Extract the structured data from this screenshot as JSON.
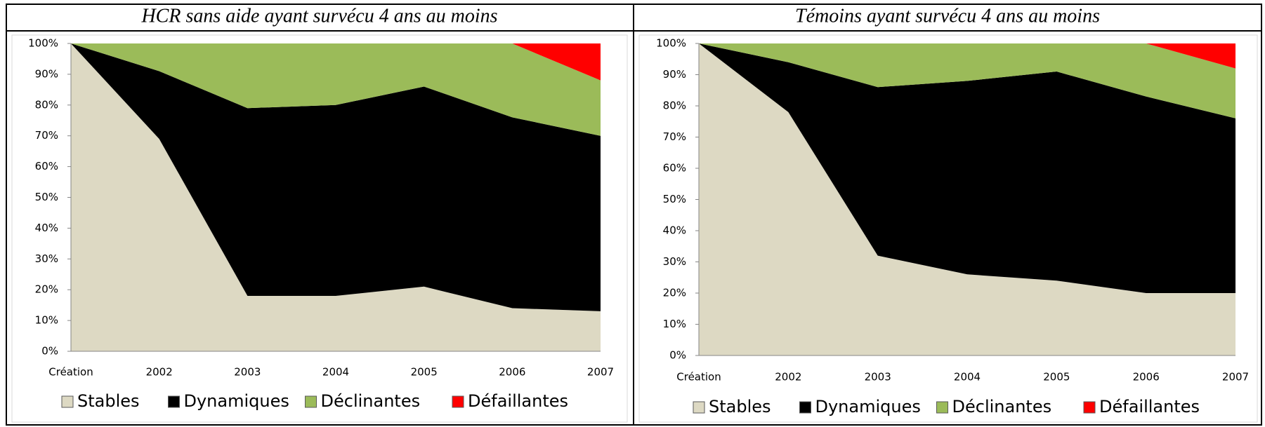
{
  "chart_data": [
    {
      "type": "area",
      "stacked": true,
      "title": "HCR sans aide ayant survécu 4 ans au moins",
      "categories": [
        "Création",
        "2002",
        "2003",
        "2004",
        "2005",
        "2006",
        "2007"
      ],
      "series": [
        {
          "name": "Stables",
          "color": "#ddd9c3",
          "values": [
            100,
            69,
            18,
            18,
            21,
            14,
            13
          ]
        },
        {
          "name": "Dynamiques",
          "color": "#000000",
          "values": [
            0,
            22,
            61,
            62,
            65,
            62,
            57
          ]
        },
        {
          "name": "Déclinantes",
          "color": "#9bbb59",
          "values": [
            0,
            9,
            21,
            20,
            14,
            24,
            18
          ]
        },
        {
          "name": "Défaillantes",
          "color": "#ff0000",
          "values": [
            0,
            0,
            0,
            0,
            0,
            0,
            12
          ]
        }
      ],
      "ylim": [
        0,
        100
      ],
      "yticks": [
        {
          "value": 0,
          "label": "0%"
        },
        {
          "value": 10,
          "label": "10%"
        },
        {
          "value": 20,
          "label": "20%"
        },
        {
          "value": 30,
          "label": "30%"
        },
        {
          "value": 40,
          "label": "40%"
        },
        {
          "value": 50,
          "label": "50%"
        },
        {
          "value": 60,
          "label": "60%"
        },
        {
          "value": 70,
          "label": "70%"
        },
        {
          "value": 80,
          "label": "80%"
        },
        {
          "value": 90,
          "label": "90%"
        },
        {
          "value": 100,
          "label": "100%"
        }
      ],
      "legend": "bottom"
    },
    {
      "type": "area",
      "stacked": true,
      "title": "Témoins ayant survécu 4 ans au moins",
      "categories": [
        "Création",
        "2002",
        "2003",
        "2004",
        "2005",
        "2006",
        "2007"
      ],
      "series": [
        {
          "name": "Stables",
          "color": "#ddd9c3",
          "values": [
            100,
            78,
            32,
            26,
            24,
            20,
            20
          ]
        },
        {
          "name": "Dynamiques",
          "color": "#000000",
          "values": [
            0,
            16,
            54,
            62,
            67,
            63,
            56
          ]
        },
        {
          "name": "Déclinantes",
          "color": "#9bbb59",
          "values": [
            0,
            6,
            14,
            12,
            9,
            17,
            16
          ]
        },
        {
          "name": "Défaillantes",
          "color": "#ff0000",
          "values": [
            0,
            0,
            0,
            0,
            0,
            0,
            8
          ]
        }
      ],
      "ylim": [
        0,
        100
      ],
      "yticks": [
        {
          "value": 0,
          "label": "0%"
        },
        {
          "value": 10,
          "label": "10%"
        },
        {
          "value": 20,
          "label": "20%"
        },
        {
          "value": 30,
          "label": "30%"
        },
        {
          "value": 40,
          "label": "40%"
        },
        {
          "value": 50,
          "label": "50%"
        },
        {
          "value": 60,
          "label": "60%"
        },
        {
          "value": 70,
          "label": "70%"
        },
        {
          "value": 80,
          "label": "80%"
        },
        {
          "value": 90,
          "label": "90%"
        },
        {
          "value": 100,
          "label": "100%"
        }
      ],
      "legend": "bottom"
    }
  ]
}
